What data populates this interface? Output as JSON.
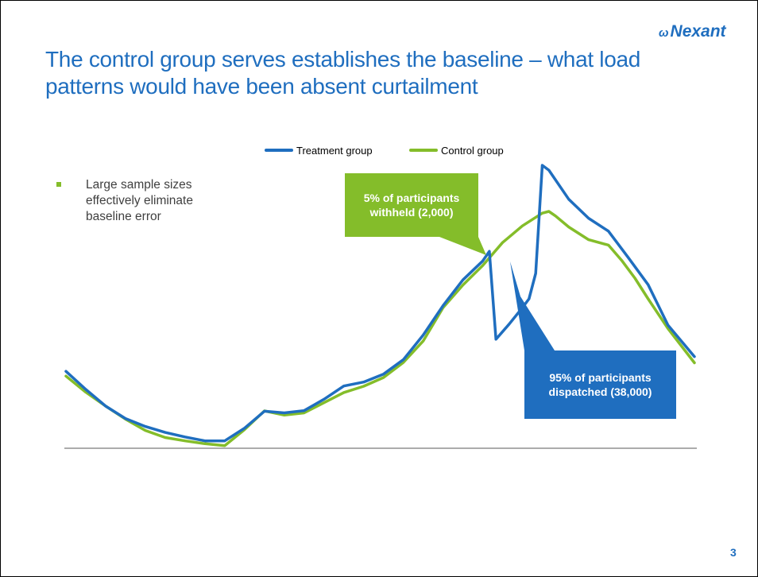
{
  "slide": {
    "logo_text": "Nexant",
    "logo_mark": "ω",
    "title": "The control group serves establishes the baseline – what load patterns would have been absent curtailment",
    "bullet": "Large sample sizes effectively eliminate baseline error",
    "callout_control": "5% of participants withheld (2,000)",
    "callout_treatment": "95% of participants dispatched (38,000)",
    "page_number": "3"
  },
  "colors": {
    "brand_blue": "#1f6ebf",
    "brand_green": "#84bd2a"
  },
  "chart_data": {
    "type": "line",
    "xlim": [
      0,
      95
    ],
    "ylim": [
      0,
      100
    ],
    "grid": false,
    "legend_position": "top-center",
    "series": [
      {
        "name": "Treatment group",
        "color": "#1f6ebf",
        "points": [
          [
            0,
            27.2
          ],
          [
            3,
            20.8
          ],
          [
            6,
            14.9
          ],
          [
            9,
            10.5
          ],
          [
            12,
            7.7
          ],
          [
            15,
            5.6
          ],
          [
            18,
            4.0
          ],
          [
            21,
            2.6
          ],
          [
            24,
            2.6
          ],
          [
            27,
            7.1
          ],
          [
            30,
            13.1
          ],
          [
            33,
            12.5
          ],
          [
            36,
            13.3
          ],
          [
            39,
            17.3
          ],
          [
            42,
            22.0
          ],
          [
            45,
            23.4
          ],
          [
            48,
            26.2
          ],
          [
            51,
            31.3
          ],
          [
            54,
            40.0
          ],
          [
            57,
            50.4
          ],
          [
            60,
            59.5
          ],
          [
            63,
            66.2
          ],
          [
            64,
            69.6
          ],
          [
            65,
            38.5
          ],
          [
            67,
            43.9
          ],
          [
            69,
            49.7
          ],
          [
            70,
            52.8
          ],
          [
            71,
            61.8
          ],
          [
            72,
            100.0
          ],
          [
            73,
            98.3
          ],
          [
            76,
            88.0
          ],
          [
            79,
            81.3
          ],
          [
            82,
            76.7
          ],
          [
            85,
            67.4
          ],
          [
            88,
            57.8
          ],
          [
            91,
            43.5
          ],
          [
            95,
            32.4
          ]
        ]
      },
      {
        "name": "Control group",
        "color": "#84bd2a",
        "points": [
          [
            0,
            25.5
          ],
          [
            3,
            19.8
          ],
          [
            6,
            14.9
          ],
          [
            9,
            10.3
          ],
          [
            12,
            6.3
          ],
          [
            15,
            3.8
          ],
          [
            18,
            2.6
          ],
          [
            21,
            1.6
          ],
          [
            24,
            0.9
          ],
          [
            27,
            6.6
          ],
          [
            30,
            13.2
          ],
          [
            33,
            11.7
          ],
          [
            36,
            12.5
          ],
          [
            39,
            16.1
          ],
          [
            42,
            19.7
          ],
          [
            45,
            21.9
          ],
          [
            48,
            25.0
          ],
          [
            51,
            30.3
          ],
          [
            54,
            37.9
          ],
          [
            57,
            49.7
          ],
          [
            60,
            57.7
          ],
          [
            63,
            64.6
          ],
          [
            66,
            72.7
          ],
          [
            69,
            78.6
          ],
          [
            72,
            83.1
          ],
          [
            73,
            83.7
          ],
          [
            74,
            82.1
          ],
          [
            76,
            78.2
          ],
          [
            79,
            73.7
          ],
          [
            82,
            71.8
          ],
          [
            84,
            66.4
          ],
          [
            86,
            60.1
          ],
          [
            88,
            52.8
          ],
          [
            91,
            42.3
          ],
          [
            95,
            30.2
          ]
        ]
      }
    ]
  }
}
